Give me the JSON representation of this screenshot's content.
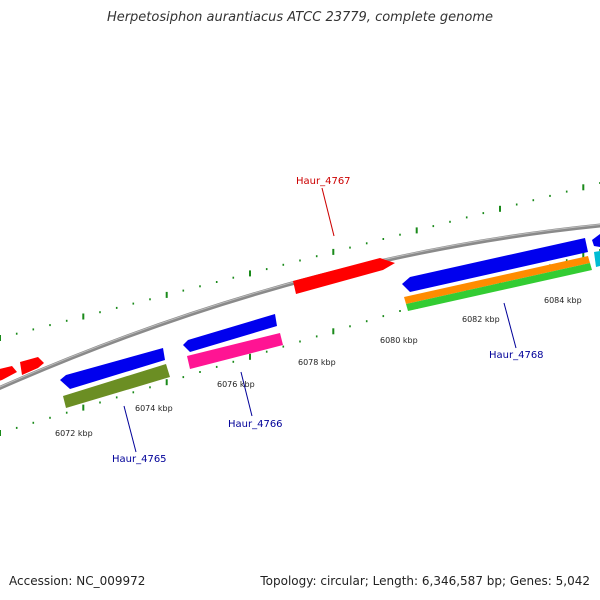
{
  "header": {
    "title": "Herpetosiphon aurantiacus ATCC 23779, complete genome"
  },
  "footer": {
    "accession": "Accession: NC_009972",
    "summary": "Topology: circular; Length: 6,346,587 bp; Genes: 5,042"
  },
  "colors": {
    "backbone": "#888888",
    "tick": "#1a8a1a",
    "forward_label": "#cc0000",
    "reverse_label": "#000099"
  },
  "scale_labels": [
    "6072 kbp",
    "6074 kbp",
    "6076 kbp",
    "6078 kbp",
    "6080 kbp",
    "6082 kbp",
    "6084 kbp"
  ],
  "genes": [
    {
      "name": "Haur_4765",
      "strand": "reverse"
    },
    {
      "name": "Haur_4766",
      "strand": "reverse"
    },
    {
      "name": "Haur_4767",
      "strand": "forward"
    },
    {
      "name": "Haur_4768",
      "strand": "reverse"
    }
  ],
  "feature_colors": [
    "#ff0000",
    "#0000ee",
    "#6b8e23",
    "#ff1493",
    "#ff8c00",
    "#33cc33",
    "#00bcd4"
  ]
}
